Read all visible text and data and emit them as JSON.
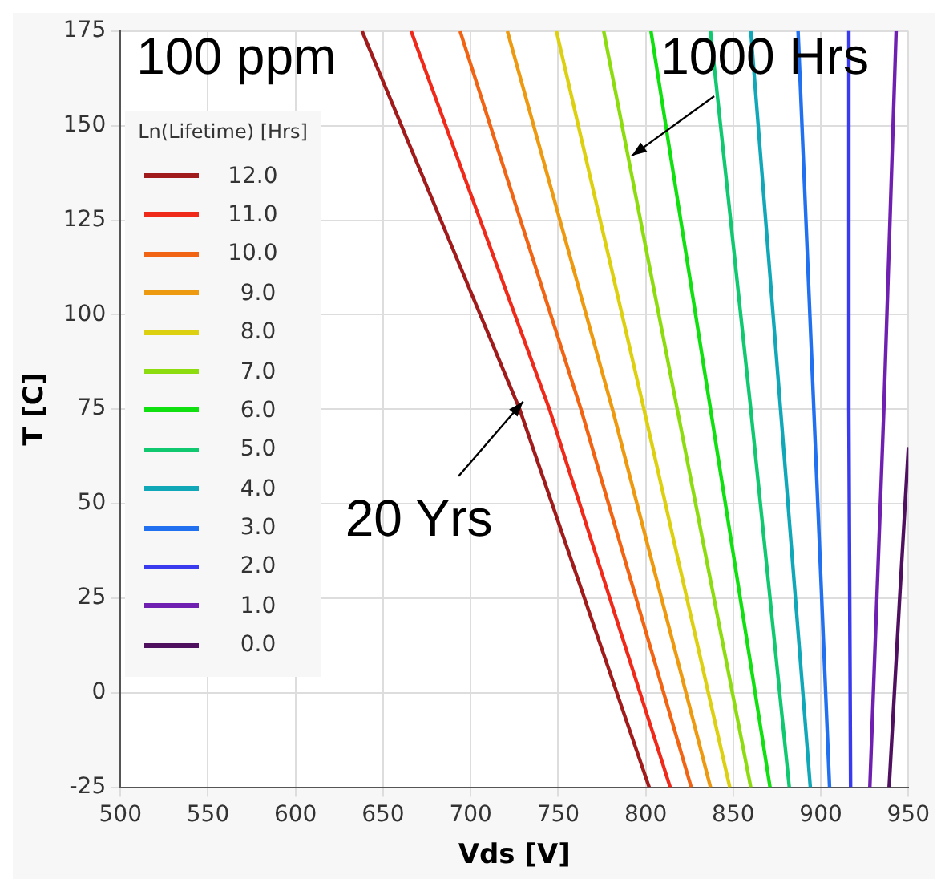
{
  "chart_data": {
    "type": "line",
    "xlabel": "Vds [V]",
    "ylabel": "T [C]",
    "legend_title": "Ln(Lifetime) [Hrs]",
    "annotations": [
      "100 ppm",
      {
        "text": "1000 Hrs",
        "x": 792,
        "y": 142
      },
      {
        "text": "20 Yrs",
        "x": 730,
        "y": 77
      }
    ],
    "xlim": [
      500,
      950
    ],
    "xticks": [
      500,
      550,
      600,
      650,
      700,
      750,
      800,
      850,
      900,
      950
    ],
    "ylim": [
      -25,
      175
    ],
    "yticks": [
      -25,
      0,
      25,
      50,
      75,
      100,
      125,
      150,
      175
    ],
    "grid": true,
    "legend": "top left",
    "marker": "none",
    "line_style": "solid",
    "series": [
      {
        "name": "12.0",
        "color": "#a01c1c",
        "x": [
          638,
          728,
          802
        ],
        "values": [
          175,
          75,
          -25
        ]
      },
      {
        "name": "11.0",
        "color": "#f02a1a",
        "x": [
          666,
          745,
          814
        ],
        "values": [
          175,
          75,
          -25
        ]
      },
      {
        "name": "10.0",
        "color": "#f06414",
        "x": [
          694,
          763,
          826
        ],
        "values": [
          175,
          75,
          -25
        ]
      },
      {
        "name": "9.0",
        "color": "#ee9a10",
        "x": [
          721,
          781,
          837
        ],
        "values": [
          175,
          75,
          -25
        ]
      },
      {
        "name": "8.0",
        "color": "#dcd010",
        "x": [
          749,
          799,
          848
        ],
        "values": [
          175,
          75,
          -25
        ]
      },
      {
        "name": "7.0",
        "color": "#8cdc10",
        "x": [
          776,
          818,
          860
        ],
        "values": [
          175,
          75,
          -25
        ]
      },
      {
        "name": "6.0",
        "color": "#10e010",
        "x": [
          803,
          837,
          871
        ],
        "values": [
          175,
          75,
          -25
        ]
      },
      {
        "name": "5.0",
        "color": "#10c870",
        "x": [
          837,
          860,
          882
        ],
        "values": [
          175,
          75,
          -25
        ]
      },
      {
        "name": "4.0",
        "color": "#10a8b8",
        "x": [
          860,
          877,
          894
        ],
        "values": [
          175,
          75,
          -25
        ]
      },
      {
        "name": "3.0",
        "color": "#2070f0",
        "x": [
          887,
          896,
          905
        ],
        "values": [
          175,
          75,
          -25
        ]
      },
      {
        "name": "2.0",
        "color": "#3a3aee",
        "x": [
          916,
          916,
          917
        ],
        "values": [
          175,
          75,
          -25
        ]
      },
      {
        "name": "1.0",
        "color": "#7020b0",
        "x": [
          943,
          936,
          928
        ],
        "values": [
          175,
          75,
          -25
        ]
      },
      {
        "name": "0.0",
        "color": "#501060",
        "x": [
          950,
          945,
          939
        ],
        "values": [
          65,
          25,
          -25
        ]
      }
    ]
  }
}
